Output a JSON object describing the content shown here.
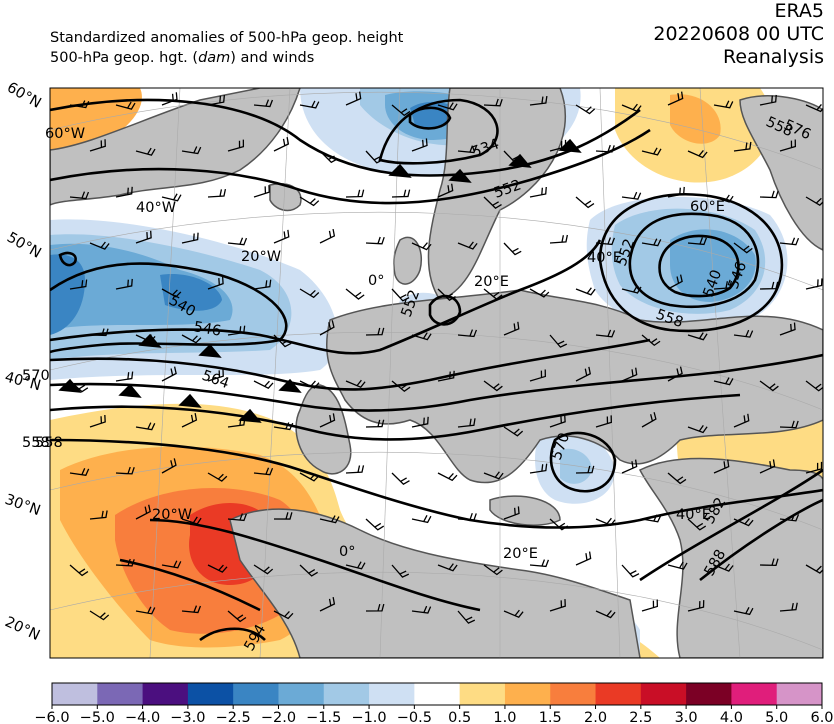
{
  "header": {
    "title_line1": "Standardized anomalies of 500-hPa geop. height",
    "title_line2_pre": "500-hPa geop. hgt. (",
    "title_line2_unit": "dam",
    "title_line2_post": ") and winds",
    "source": "ERA5",
    "datetime": "20220608 00 UTC",
    "product": "Reanalysis"
  },
  "map": {
    "lat_labels": [
      "60°N",
      "50°N",
      "40°N",
      "30°N",
      "20°N"
    ],
    "lon_labels": [
      "60°W",
      "40°W",
      "20°W",
      "0°",
      "20°E",
      "40°E",
      "60°E",
      "20°W",
      "0°",
      "20°E",
      "40°E"
    ],
    "contour_labels": [
      "534",
      "552",
      "558",
      "540",
      "546",
      "552",
      "540",
      "546",
      "552",
      "558",
      "564",
      "570",
      "558",
      "582",
      "588",
      "594",
      "570",
      "558",
      "576"
    ]
  },
  "colorbar": {
    "colors": [
      "#bfbfdf",
      "#7b68b5",
      "#4b0f7f",
      "#0c51a5",
      "#3a85c3",
      "#6baad6",
      "#a2c9e6",
      "#cfe0f3",
      "#ffffff",
      "#fedc84",
      "#feb04d",
      "#f87e3d",
      "#ea3a25",
      "#c90e26",
      "#7b0025",
      "#e01e7b",
      "#d694c8"
    ],
    "ticks": [
      "−6.0",
      "−5.0",
      "−4.0",
      "−3.0",
      "−2.5",
      "−2.0",
      "−1.5",
      "−1.0",
      "−0.5",
      "0.5",
      "1.0",
      "1.5",
      "2.0",
      "2.5",
      "3.0",
      "4.0",
      "5.0",
      "6.0"
    ]
  }
}
